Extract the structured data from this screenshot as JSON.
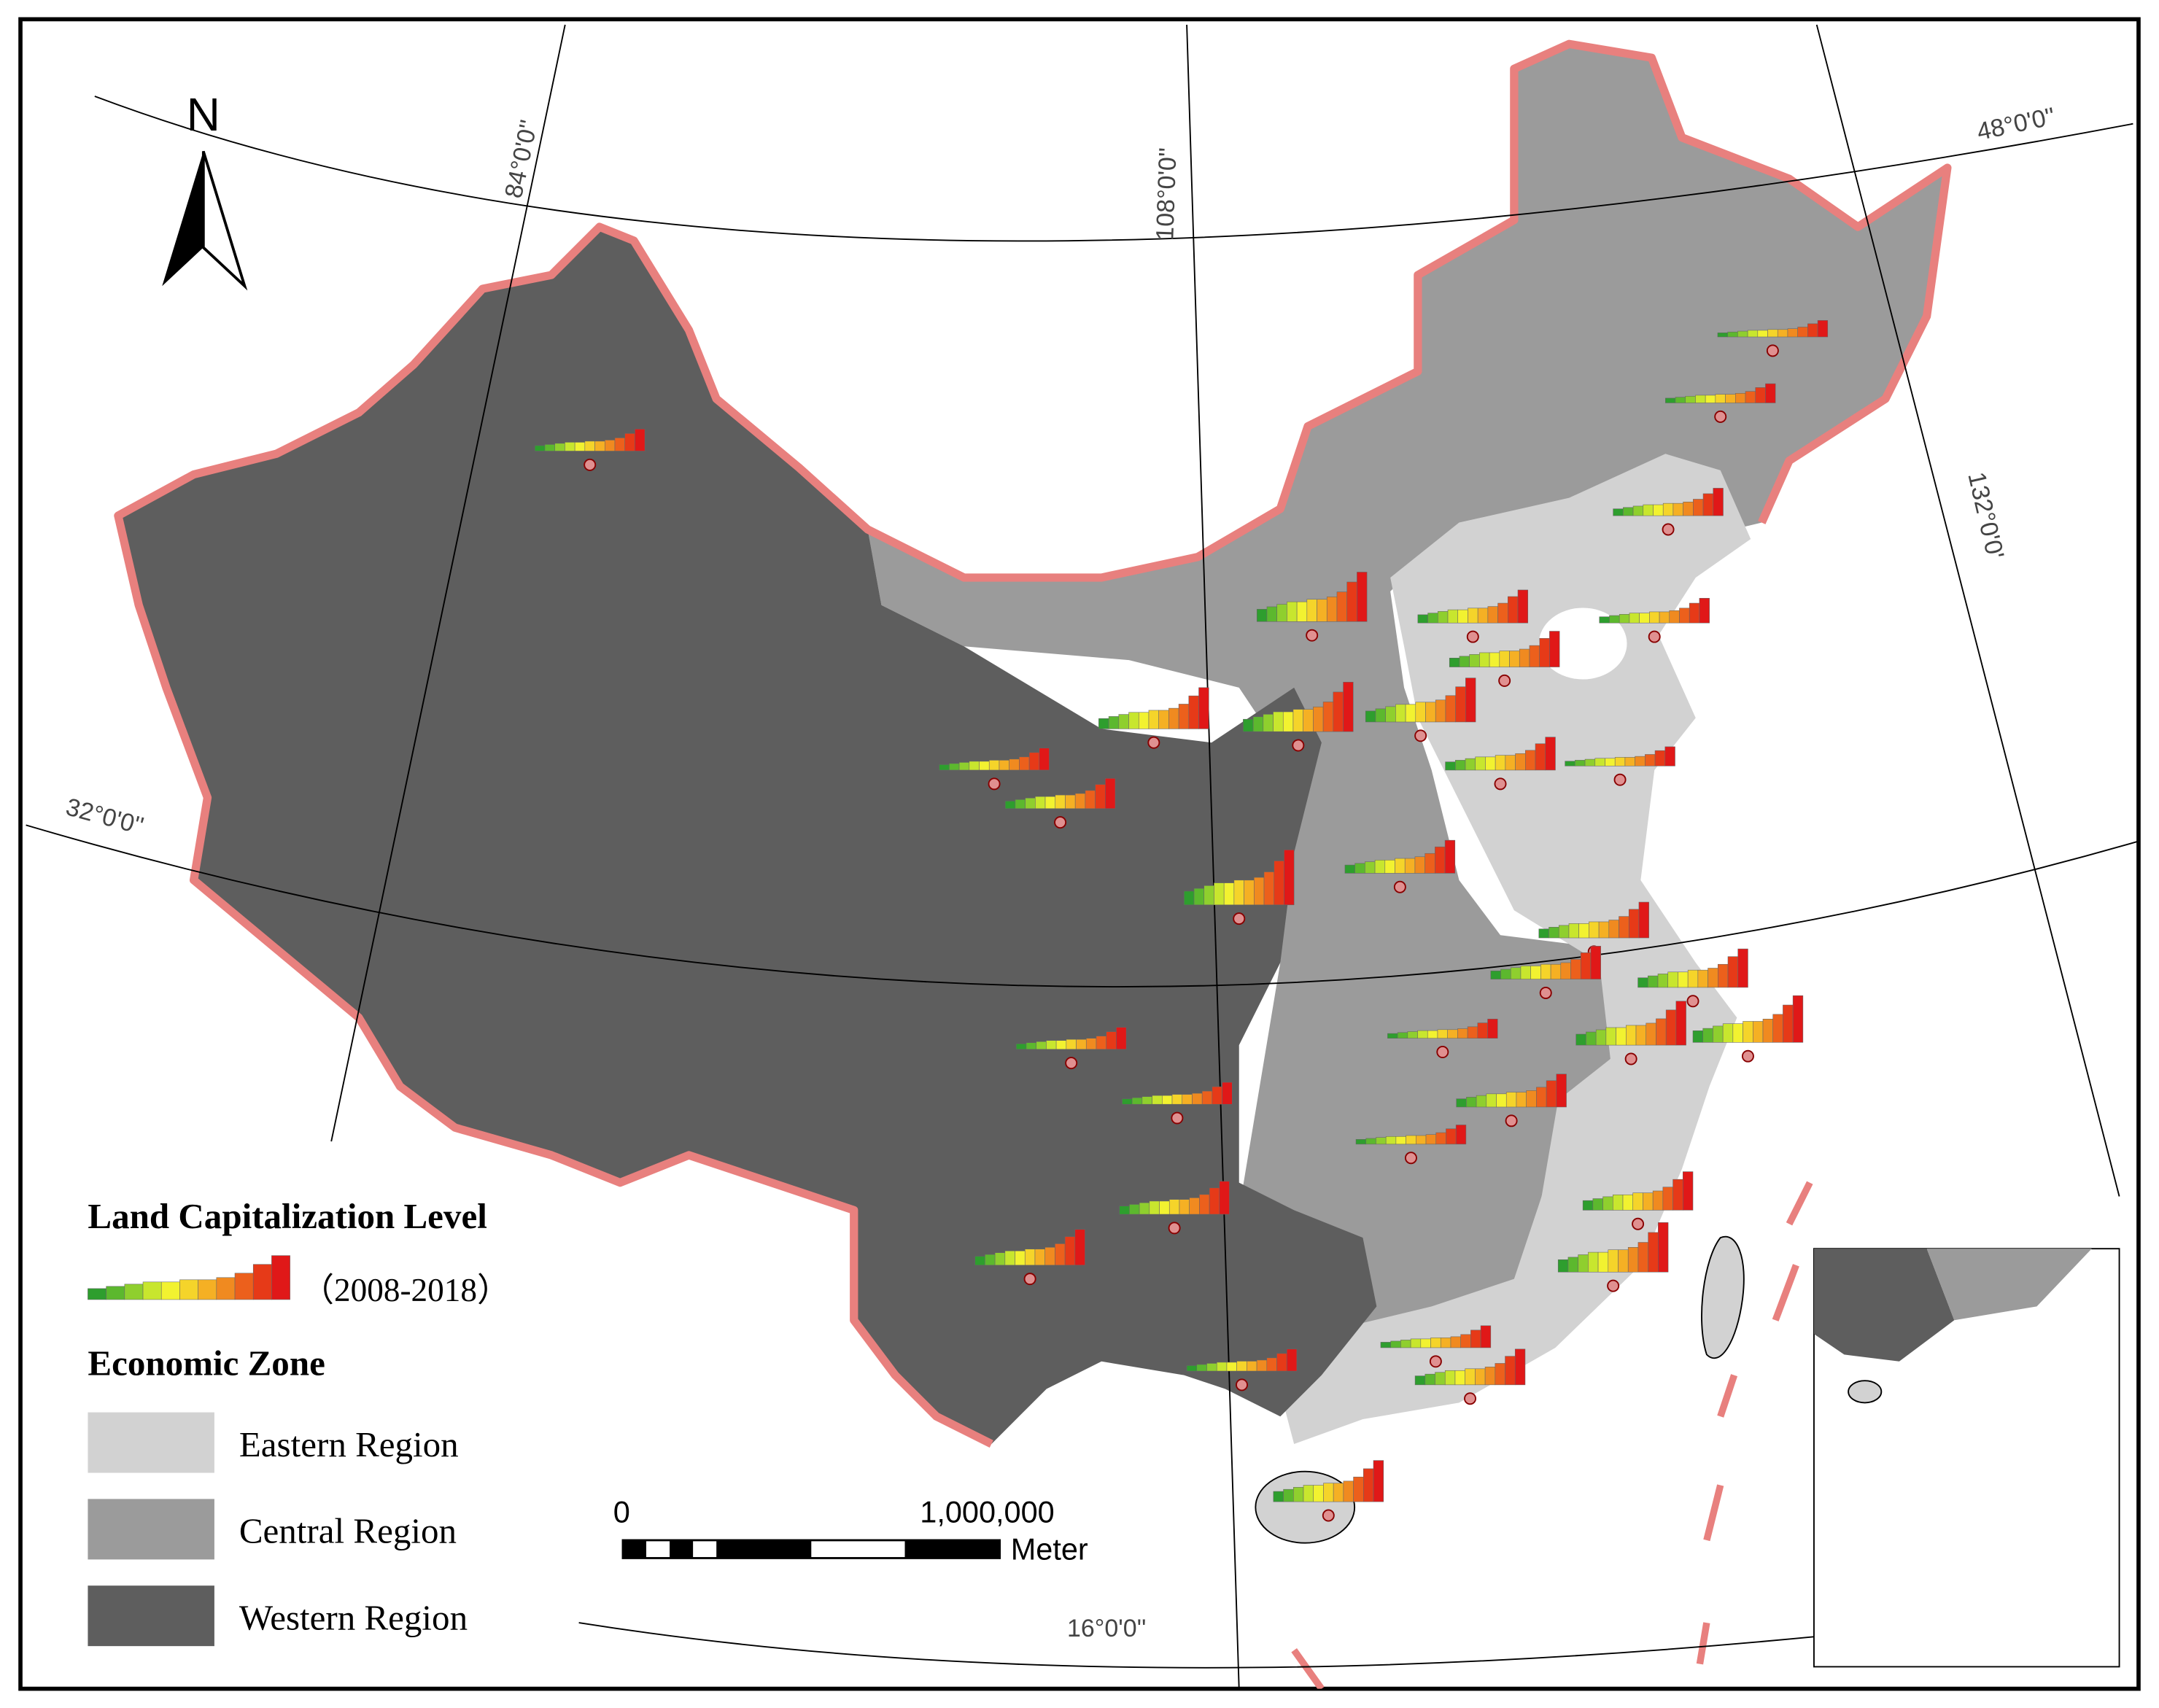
{
  "north_arrow": {
    "label": "N"
  },
  "graticule": {
    "labels": [
      "84°0'0''",
      "108°0'0''",
      "48°0'0''",
      "132°0'0'",
      "32°0'0''",
      "16°0'0''"
    ]
  },
  "legend": {
    "title": "Land Capitalization Level",
    "period": "（2008-2018）",
    "zone_title": "Economic Zone",
    "zones": [
      {
        "label": "Eastern Region",
        "color": "#d2d2d2"
      },
      {
        "label": "Central Region",
        "color": "#9b9b9b"
      },
      {
        "label": "Western Region",
        "color": "#5e5e5e"
      }
    ]
  },
  "scale_bar": {
    "start": "0",
    "end": "1,000,000",
    "unit": "Meter"
  }
}
